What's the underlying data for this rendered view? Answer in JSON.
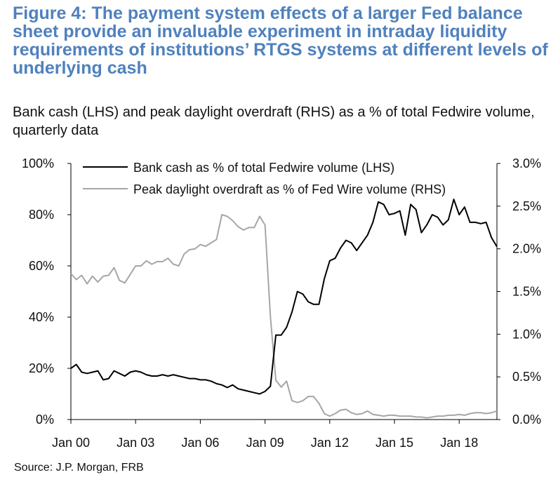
{
  "figure": {
    "title": "Figure 4: The payment system effects of a larger Fed balance sheet provide an invaluable experiment in intraday liquidity requirements of institutions’ RTGS systems at different levels of underlying cash",
    "subtitle": "Bank cash (LHS) and peak daylight overdraft (RHS) as a % of total Fedwire volume, quarterly data",
    "source": "Source: J.P. Morgan, FRB"
  },
  "chart_data": {
    "type": "line",
    "x_start": 2000.0,
    "x_end": 2019.75,
    "x_step": 0.25,
    "xtick_values": [
      2000,
      2003,
      2006,
      2009,
      2012,
      2015,
      2018
    ],
    "xtick_labels": [
      "Jan 00",
      "Jan 03",
      "Jan 06",
      "Jan 09",
      "Jan 12",
      "Jan 15",
      "Jan 18"
    ],
    "y_left": {
      "lim": [
        0,
        100
      ],
      "ticks": [
        0,
        20,
        40,
        60,
        80,
        100
      ],
      "tick_labels": [
        "0%",
        "20%",
        "40%",
        "60%",
        "80%",
        "100%"
      ]
    },
    "y_right": {
      "lim": [
        0,
        3
      ],
      "ticks": [
        0,
        0.5,
        1,
        1.5,
        2,
        2.5,
        3
      ],
      "tick_labels": [
        "0.0%",
        "0.5%",
        "1.0%",
        "1.5%",
        "2.0%",
        "2.5%",
        "3.0%"
      ]
    },
    "legend_position": "top",
    "series": [
      {
        "name": "Bank cash as % of total Fedwire volume (LHS)",
        "axis": "left",
        "color": "#000000",
        "values": [
          20,
          21.5,
          18.5,
          18,
          18.5,
          19,
          15.5,
          16,
          19,
          18,
          17,
          18.5,
          19,
          18.5,
          17.5,
          17,
          17,
          17.5,
          17,
          17.5,
          17,
          16.5,
          16,
          16,
          15.5,
          15.5,
          15,
          14,
          13.5,
          12.5,
          13.5,
          12,
          11.5,
          11,
          10.5,
          10,
          11,
          13,
          33,
          33,
          36,
          42,
          50,
          49,
          46,
          45,
          45,
          55,
          62,
          63,
          67,
          70,
          69,
          66,
          69,
          72,
          77,
          85,
          84,
          80,
          80.5,
          81.5,
          72,
          84,
          82,
          73,
          76,
          80,
          79,
          76,
          78,
          86,
          80,
          83,
          77,
          77,
          76.5,
          77,
          71,
          67.5
        ]
      },
      {
        "name": "Peak daylight overdraft as % of Fed Wire volume (RHS)",
        "axis": "right",
        "color": "#a6a6a6",
        "values": [
          1.71,
          1.64,
          1.69,
          1.59,
          1.68,
          1.61,
          1.68,
          1.69,
          1.78,
          1.63,
          1.6,
          1.7,
          1.8,
          1.8,
          1.86,
          1.82,
          1.85,
          1.85,
          1.89,
          1.82,
          1.8,
          1.94,
          1.99,
          2.0,
          2.05,
          2.03,
          2.07,
          2.11,
          2.4,
          2.38,
          2.33,
          2.26,
          2.22,
          2.25,
          2.25,
          2.38,
          2.28,
          1.2,
          0.46,
          0.38,
          0.45,
          0.22,
          0.2,
          0.22,
          0.27,
          0.27,
          0.19,
          0.07,
          0.04,
          0.07,
          0.11,
          0.12,
          0.08,
          0.06,
          0.07,
          0.1,
          0.06,
          0.05,
          0.04,
          0.05,
          0.05,
          0.04,
          0.04,
          0.04,
          0.03,
          0.03,
          0.02,
          0.03,
          0.04,
          0.04,
          0.05,
          0.05,
          0.06,
          0.05,
          0.07,
          0.08,
          0.08,
          0.07,
          0.08,
          0.1
        ]
      }
    ]
  }
}
